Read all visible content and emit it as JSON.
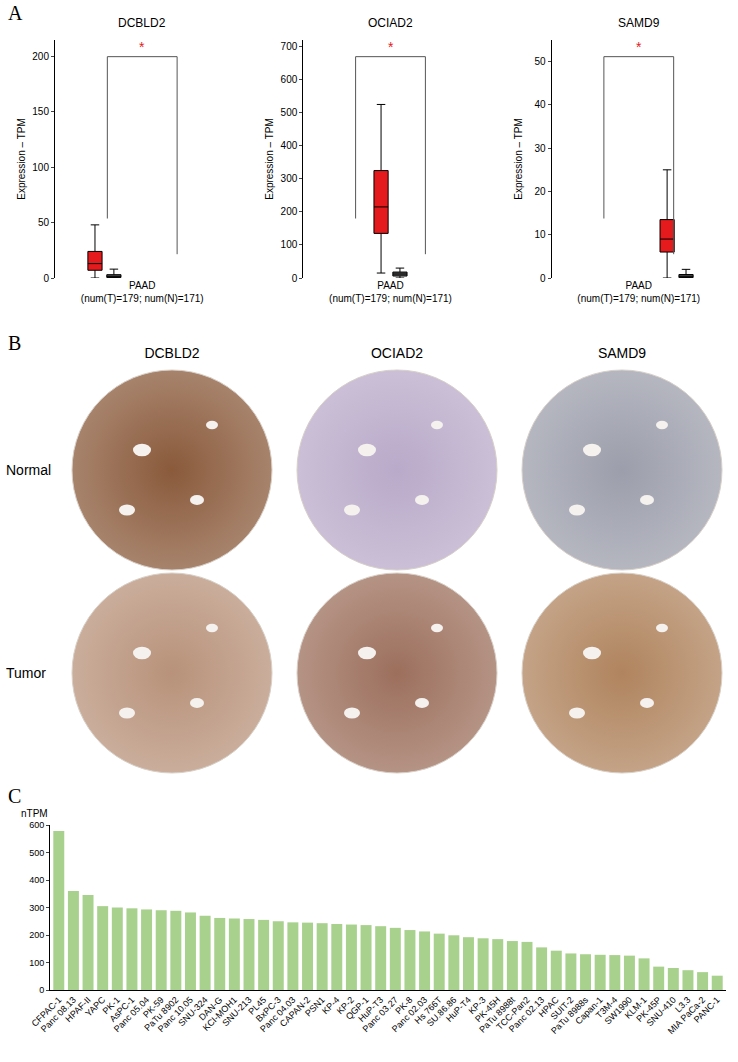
{
  "panel_letters": [
    "A",
    "B",
    "C"
  ],
  "chart_data": [
    {
      "type": "box",
      "title": "DCBLD2",
      "ylabel": "Expression – TPM",
      "categories": [
        "PAAD"
      ],
      "xlabel": "(num(T)=179; num(N)=171)",
      "ylim": [
        0,
        215
      ],
      "yticks": [
        0,
        50,
        100,
        150,
        200
      ],
      "series": [
        {
          "color": "#e41a1c",
          "lowerfence": [
            0
          ],
          "q1": [
            7
          ],
          "median": [
            13
          ],
          "q3": [
            24
          ],
          "upperfence": [
            48
          ]
        },
        {
          "color": "#555555",
          "lowerfence": [
            0
          ],
          "q1": [
            0.5
          ],
          "median": [
            1.5
          ],
          "q3": [
            3
          ],
          "upperfence": [
            8
          ]
        }
      ],
      "annotations": [
        {
          "text": "*"
        }
      ]
    },
    {
      "type": "box",
      "title": "OCIAD2",
      "ylabel": "Expression – TPM",
      "categories": [
        "PAAD"
      ],
      "xlabel": "(num(T)=179; num(N)=171)",
      "ylim": [
        0,
        720
      ],
      "yticks": [
        0,
        100,
        200,
        300,
        400,
        500,
        600,
        700
      ],
      "series": [
        {
          "color": "#e41a1c",
          "lowerfence": [
            15
          ],
          "q1": [
            135
          ],
          "median": [
            215
          ],
          "q3": [
            325
          ],
          "upperfence": [
            525
          ]
        },
        {
          "color": "#555555",
          "lowerfence": [
            0
          ],
          "q1": [
            6
          ],
          "median": [
            12
          ],
          "q3": [
            18
          ],
          "upperfence": [
            30
          ]
        }
      ],
      "annotations": [
        {
          "text": "*"
        }
      ]
    },
    {
      "type": "box",
      "title": "SAMD9",
      "ylabel": "Expression – TPM",
      "categories": [
        "PAAD"
      ],
      "xlabel": "(num(T)=179; num(N)=171)",
      "ylim": [
        0,
        55
      ],
      "yticks": [
        0,
        10,
        20,
        30,
        40,
        50
      ],
      "series": [
        {
          "color": "#e41a1c",
          "lowerfence": [
            0
          ],
          "q1": [
            6
          ],
          "median": [
            9
          ],
          "q3": [
            13.5
          ],
          "upperfence": [
            25
          ]
        },
        {
          "color": "#555555",
          "lowerfence": [
            0
          ],
          "q1": [
            0.1
          ],
          "median": [
            0.4
          ],
          "q3": [
            0.8
          ],
          "upperfence": [
            2
          ]
        }
      ],
      "annotations": [
        {
          "text": "*"
        }
      ]
    },
    {
      "type": "bar",
      "ylabel": "nTPM",
      "categories": [
        "CFPAC-1",
        "Panc 08.13",
        "HPAF-II",
        "YAPC",
        "PK-1",
        "AsPC-1",
        "Panc 05.04",
        "PK-59",
        "PaTu 8902",
        "Panc 10.05",
        "SNU-324",
        "DAN-G",
        "KCI-MOH1",
        "SNU-213",
        "PL45",
        "BxPC-3",
        "Panc 04.03",
        "CAPAN-2",
        "PSN1",
        "KP-4",
        "KP-2",
        "QGP-1",
        "HuP-T3",
        "Panc 03.27",
        "PK-8",
        "Panc 02.03",
        "Hs 766T",
        "SU.86.86",
        "HuP-T4",
        "KP-3",
        "PK-45H",
        "PaTu 8988t",
        "TCC-Pan2",
        "Panc 02.13",
        "HPAC",
        "SUIT-2",
        "PaTu 8988s",
        "Capan-1",
        "T3M-4",
        "SW1990",
        "KLM-1",
        "PK-45P",
        "SNU-410",
        "L3.3",
        "MIA PaCa-2",
        "PANC-1"
      ],
      "values": [
        578,
        360,
        345,
        305,
        300,
        297,
        293,
        290,
        288,
        282,
        270,
        262,
        260,
        258,
        255,
        250,
        246,
        245,
        243,
        240,
        238,
        236,
        232,
        226,
        218,
        213,
        205,
        199,
        192,
        188,
        185,
        178,
        175,
        155,
        143,
        133,
        130,
        128,
        127,
        125,
        115,
        85,
        80,
        72,
        65,
        52
      ],
      "color": "#a9d18e",
      "ylim": [
        0,
        600
      ],
      "yticks": [
        0,
        100,
        200,
        300,
        400,
        500,
        600
      ],
      "grid": false
    }
  ],
  "ihc": {
    "columns": [
      "DCBLD2",
      "OCIAD2",
      "SAMD9"
    ],
    "rows": [
      "Normal",
      "Tumor"
    ]
  }
}
